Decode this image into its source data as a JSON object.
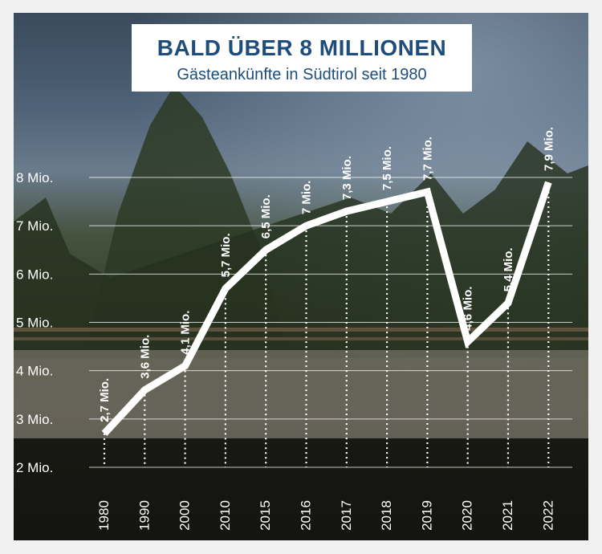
{
  "header": {
    "title": "BALD ÜBER 8 MILLIONEN",
    "subtitle": "Gästeankünfte in Südtirol seit 1980"
  },
  "colors": {
    "background": "#f1f1f1",
    "title_text": "#1e4d7b",
    "line": "#ffffff"
  },
  "chart_data": {
    "type": "line",
    "title": "BALD ÜBER 8 MILLIONEN",
    "subtitle": "Gästeankünfte in Südtirol seit 1980",
    "categories": [
      "1980",
      "1990",
      "2000",
      "2010",
      "2015",
      "2016",
      "2017",
      "2018",
      "2019",
      "2020",
      "2021",
      "2022"
    ],
    "values": [
      2.7,
      3.6,
      4.1,
      5.7,
      6.5,
      7.0,
      7.3,
      7.5,
      7.7,
      4.6,
      5.4,
      7.9
    ],
    "data_labels": [
      "2,7 Mio.",
      "3,6 Mio.",
      "4,1 Mio.",
      "5,7 Mio.",
      "6,5 Mio.",
      "7 Mio.",
      "7,3 Mio.",
      "7,5 Mio.",
      "7,7 Mio.",
      "4,6 Mio.",
      "5,4 Mio.",
      "7,9 Mio."
    ],
    "y_ticks": [
      2,
      3,
      4,
      5,
      6,
      7,
      8
    ],
    "y_tick_labels": [
      "2 Mio.",
      "3 Mio.",
      "4 Mio.",
      "5 Mio.",
      "6 Mio.",
      "7 Mio.",
      "8 Mio."
    ],
    "ylim": [
      2,
      8
    ],
    "grid": true,
    "xlabel": "",
    "ylabel": ""
  }
}
